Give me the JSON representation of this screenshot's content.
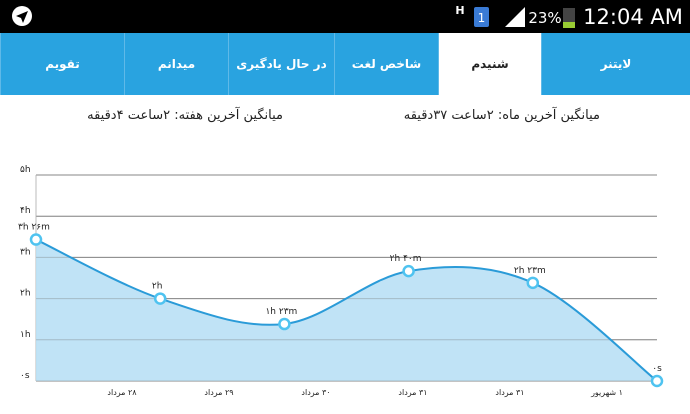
{
  "status_bar": {
    "network": "H",
    "sim": "1",
    "battery": "23%",
    "time": "12:04 AM"
  },
  "tabs": [
    "تقویم",
    "میدانم",
    "در حال یادگیری",
    "شاخص لغت",
    "شنیدم",
    "لایتنر"
  ],
  "selected_tab": "شنیدم",
  "averages": {
    "month": "میانگین آخرین ماه: ۲ساعت ۳۷دقیقه",
    "week": "میانگین آخرین هفته: ۲ساعت ۴دقیقه"
  },
  "chart_data": {
    "type": "area",
    "categories": [
      "۲۸ مرداد",
      "۲۹ مرداد",
      "۳۰ مرداد",
      "۳۱ مرداد",
      "۳۱ مرداد",
      "۱ شهریور"
    ],
    "values": [
      3.433,
      2,
      1.383,
      2.667,
      2.383,
      0
    ],
    "value_labels": [
      "۳h ۲۶m",
      "۲h",
      "۱h ۲۳m",
      "۲h ۴۰m",
      "۲h ۲۳m",
      "۰s"
    ],
    "color": "#2a9bd8",
    "fill": "#b9e0f5",
    "ylim": [
      0,
      5
    ],
    "yticks": [
      {
        "value": 0,
        "label": "۰s"
      },
      {
        "value": 1,
        "label": "۱h"
      },
      {
        "value": 2,
        "label": "۲h"
      },
      {
        "value": 3,
        "label": "۳h"
      },
      {
        "value": 4,
        "label": "۴h"
      },
      {
        "value": 5,
        "label": "۵h"
      }
    ],
    "grid": true
  }
}
